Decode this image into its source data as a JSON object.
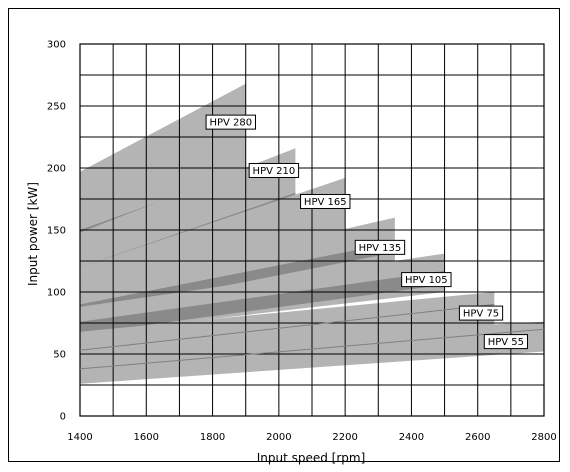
{
  "chart_data": {
    "type": "area",
    "title": "",
    "xlabel": "Input speed [rpm]",
    "ylabel": "Input power [kW]",
    "xlim": [
      1400,
      2800
    ],
    "ylim": [
      0,
      300
    ],
    "xticks": [
      1400,
      1600,
      1800,
      2000,
      2200,
      2400,
      2600,
      2800
    ],
    "yticks": [
      0,
      50,
      100,
      150,
      200,
      250,
      300
    ],
    "x_grid_step": 100,
    "y_grid_step": 25,
    "grid": true,
    "legend": "none",
    "colors": {
      "band": "#b4b4b4",
      "core": "#8a8a8a",
      "line": "#808080",
      "grid": "#000000"
    },
    "series": [
      {
        "name": "HPV 280",
        "x_range": [
          1400,
          1900
        ],
        "upper": [
          [
            1400,
            197
          ],
          [
            1900,
            268
          ]
        ],
        "lower": [
          [
            1400,
            140
          ],
          [
            1900,
            190
          ]
        ],
        "core_upper": [
          [
            1400,
            150
          ],
          [
            1900,
            198
          ]
        ],
        "core_lower": [
          [
            1400,
            140
          ],
          [
            1900,
            190
          ]
        ],
        "label_at": [
          1855,
          237
        ]
      },
      {
        "name": "HPV 210",
        "x_range": [
          1400,
          2050
        ],
        "upper": [
          [
            1400,
            148
          ],
          [
            2050,
            216
          ]
        ],
        "lower": [
          [
            1400,
            104
          ],
          [
            2050,
            155
          ]
        ],
        "core_upper": [
          [
            1400,
            120
          ],
          [
            2050,
            180
          ]
        ],
        "core_lower": [
          [
            1400,
            104
          ],
          [
            2050,
            155
          ]
        ],
        "label_at": [
          1985,
          198
        ]
      },
      {
        "name": "HPV 165",
        "x_range": [
          1400,
          2200
        ],
        "upper": [
          [
            1400,
            120
          ],
          [
            2200,
            192
          ]
        ],
        "lower": [
          [
            1400,
            90
          ],
          [
            2200,
            140
          ]
        ],
        "core_upper": [
          [
            1400,
            102
          ],
          [
            2200,
            150
          ]
        ],
        "core_lower": [
          [
            1400,
            90
          ],
          [
            2200,
            140
          ]
        ],
        "label_at": [
          2140,
          173
        ]
      },
      {
        "name": "HPV 135",
        "x_range": [
          1400,
          2350
        ],
        "upper": [
          [
            1400,
            102
          ],
          [
            2350,
            160
          ]
        ],
        "lower": [
          [
            1400,
            67
          ],
          [
            2350,
            112
          ]
        ],
        "core_upper": [
          [
            1400,
            90
          ],
          [
            2350,
            140
          ]
        ],
        "core_lower": [
          [
            1400,
            82
          ],
          [
            2350,
            132
          ]
        ],
        "label_at": [
          2305,
          136
        ]
      },
      {
        "name": "HPV 105",
        "x_range": [
          1400,
          2500
        ],
        "upper": [
          [
            1400,
            88
          ],
          [
            2500,
            131
          ]
        ],
        "lower": [
          [
            1400,
            66
          ],
          [
            2500,
            100
          ]
        ],
        "core_upper": [
          [
            1400,
            76
          ],
          [
            2500,
            117
          ]
        ],
        "core_lower": [
          [
            1400,
            66
          ],
          [
            2500,
            106
          ]
        ],
        "label_at": [
          2445,
          110
        ]
      },
      {
        "name": "HPV 75",
        "x_range": [
          1400,
          2650
        ],
        "upper": [
          [
            1400,
            68
          ],
          [
            2650,
            100
          ]
        ],
        "lower": [
          [
            1400,
            34
          ],
          [
            2650,
            60
          ]
        ],
        "center_line": [
          [
            1400,
            53
          ],
          [
            2650,
            90
          ]
        ],
        "label_at": [
          2610,
          83
        ]
      },
      {
        "name": "HPV 55",
        "x_range": [
          1400,
          2800
        ],
        "upper": [
          [
            1400,
            56
          ],
          [
            2800,
            76
          ]
        ],
        "lower": [
          [
            1400,
            26
          ],
          [
            2800,
            52
          ]
        ],
        "center_line": [
          [
            1400,
            38
          ],
          [
            2800,
            70
          ]
        ],
        "label_at": [
          2685,
          60
        ]
      }
    ]
  }
}
